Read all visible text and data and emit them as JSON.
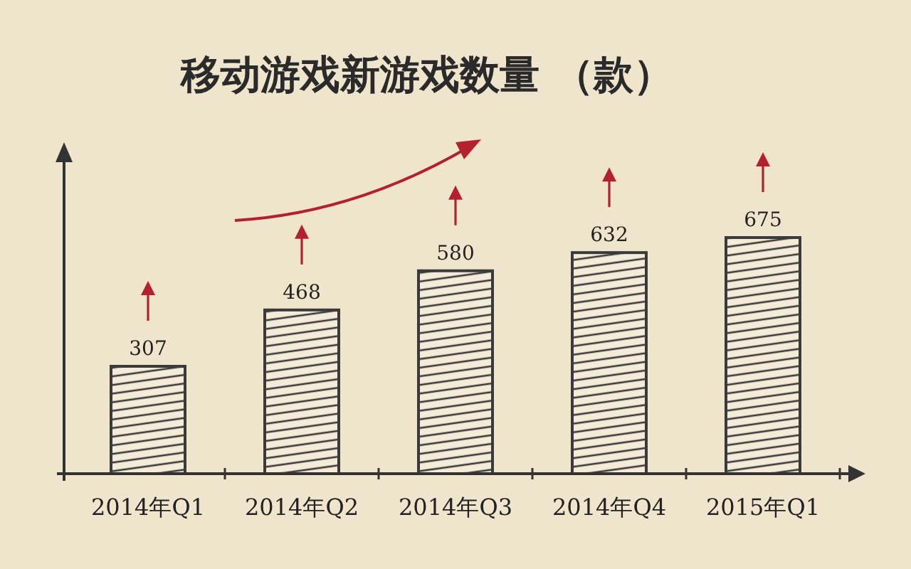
{
  "chart_data": {
    "type": "bar",
    "title": "移动游戏新游戏数量 （款）",
    "categories": [
      "2014年Q1",
      "2014年Q2",
      "2014年Q3",
      "2014年Q4",
      "2015年Q1"
    ],
    "values": [
      307,
      468,
      580,
      632,
      675
    ],
    "color": "#3a3a3a",
    "data_labels": true
  }
}
